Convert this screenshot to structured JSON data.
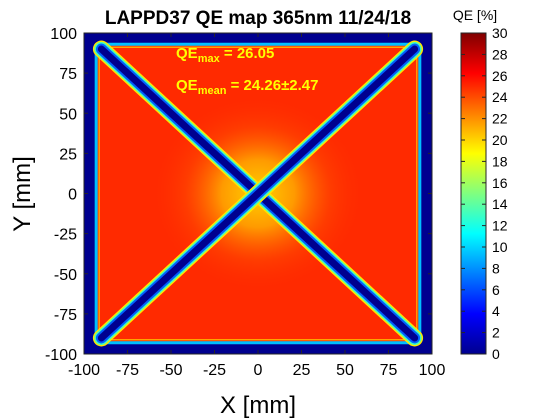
{
  "chart_data": {
    "type": "heatmap",
    "title": "LAPPD37 QE map 365nm 11/24/18",
    "xlabel": "X [mm]",
    "ylabel": "Y [mm]",
    "xlim": [
      -100,
      100
    ],
    "ylim": [
      -100,
      100
    ],
    "x_ticks": [
      -100,
      -75,
      -50,
      -25,
      0,
      25,
      50,
      75,
      100
    ],
    "y_ticks": [
      -100,
      -75,
      -50,
      -25,
      0,
      25,
      50,
      75,
      100
    ],
    "colorbar": {
      "label": "QE [%]",
      "range": [
        0,
        30
      ],
      "ticks": [
        0,
        2,
        4,
        6,
        8,
        10,
        12,
        14,
        16,
        18,
        20,
        22,
        24,
        26,
        28,
        30
      ],
      "colormap": "jet"
    },
    "annotations": {
      "qe_max": {
        "prefix": "QE",
        "subscript": "max",
        "text": " = 26.05"
      },
      "qe_mean": {
        "prefix": "QE",
        "subscript": "mean",
        "text": " = 24.26±2.47"
      },
      "color": "#ffff00"
    },
    "map": {
      "active_region": {
        "x": [
          -93,
          93
        ],
        "y": [
          -93,
          93
        ],
        "qe_percent": 25.5
      },
      "outside_region_qe_percent": 1,
      "center_qe_percent": 20.5,
      "diagonal_gaps": [
        {
          "from": [
            -90,
            90
          ],
          "to": [
            90,
            -90
          ],
          "qe_percent": 1
        },
        {
          "from": [
            -90,
            -90
          ],
          "to": [
            90,
            90
          ],
          "qe_percent": 1
        }
      ]
    }
  }
}
